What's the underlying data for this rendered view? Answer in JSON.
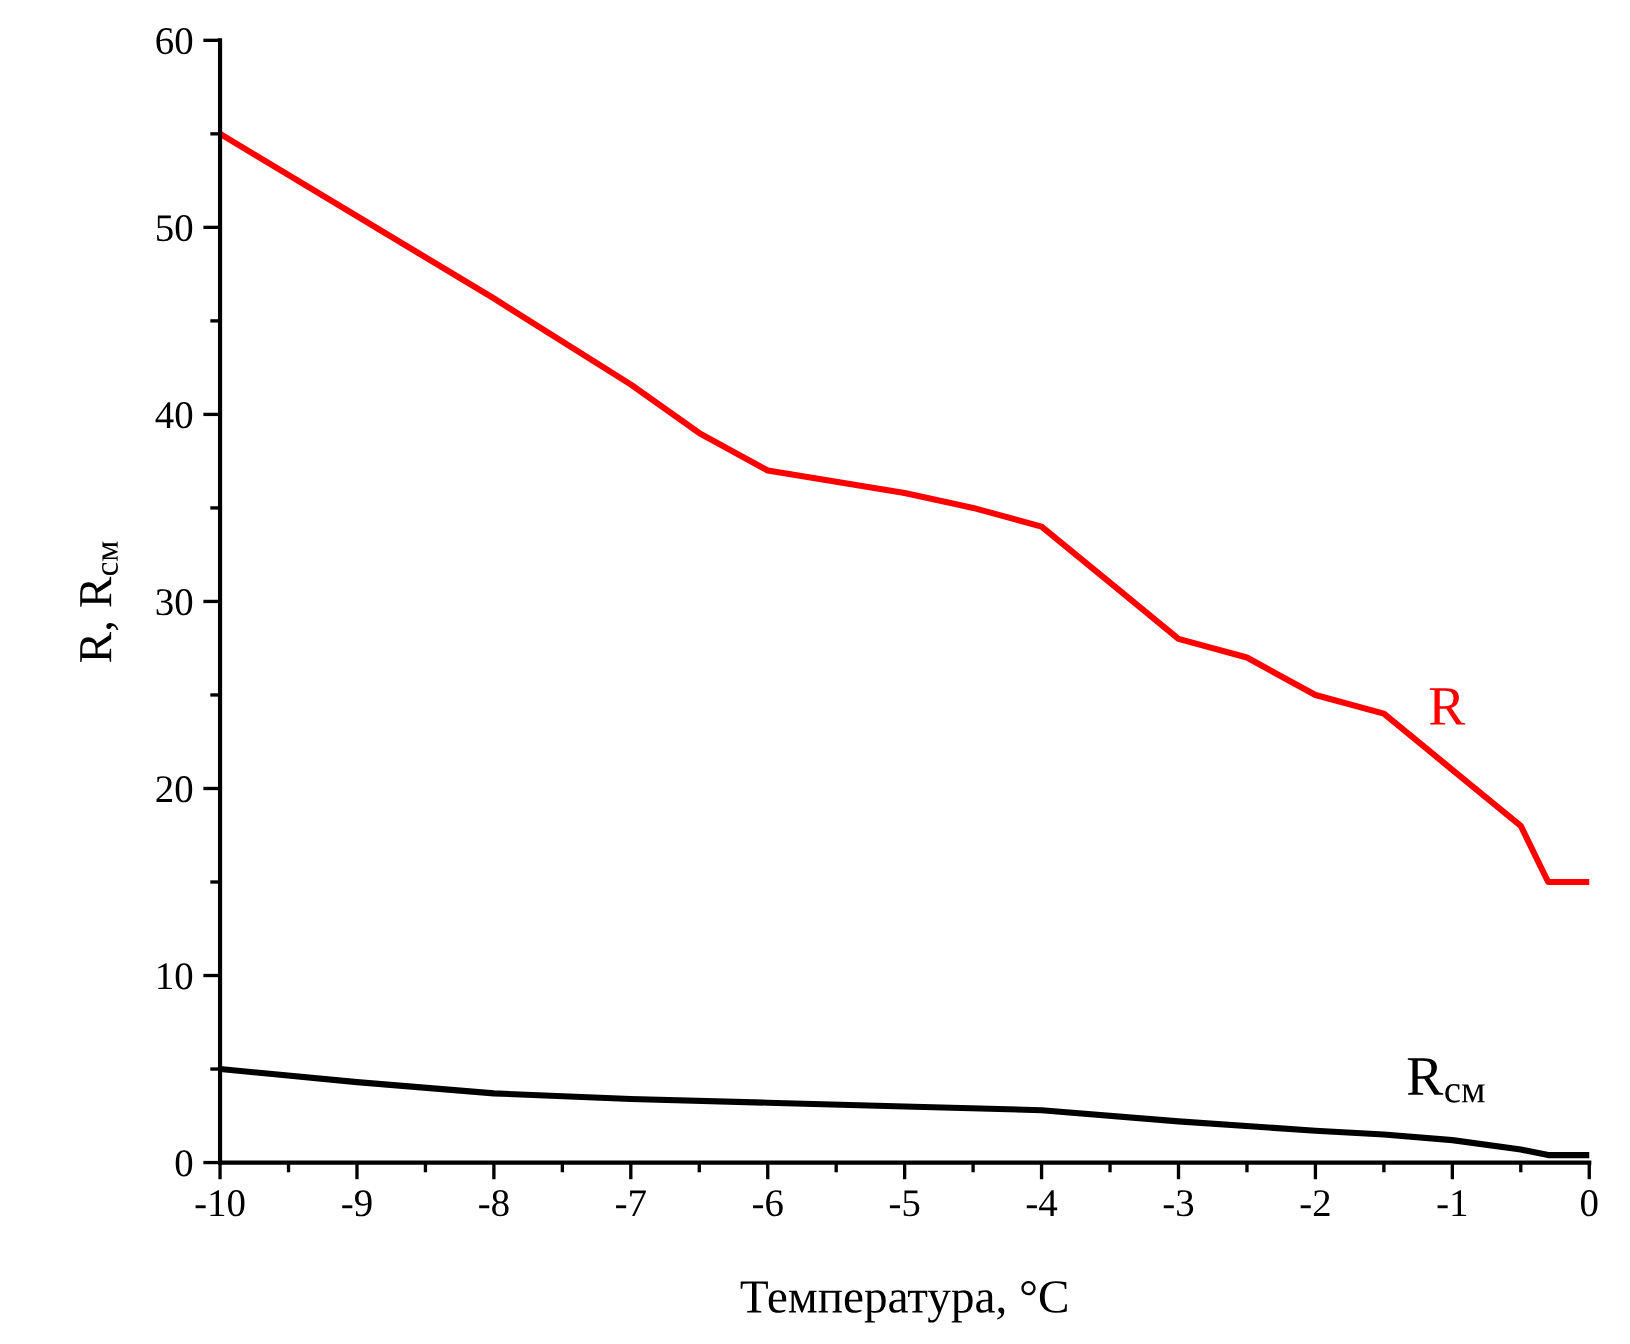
{
  "chart_data": {
    "type": "line",
    "xlabel": "Температура, °C",
    "ylabel": "R, R$_{см}$",
    "xlim": [
      -10,
      0
    ],
    "xticks": [
      -10,
      -9,
      -8,
      -7,
      -6,
      -5,
      -4,
      -3,
      -2,
      -1,
      0
    ],
    "ylim": [
      0,
      60
    ],
    "yticks": [
      0,
      10,
      20,
      30,
      40,
      50,
      60
    ],
    "grid": false,
    "marker": "none",
    "line_style": "solid",
    "series": [
      {
        "name": "R",
        "color": "#ff0000",
        "x": [
          -10,
          -9,
          -8,
          -7,
          -6.5,
          -6,
          -5,
          -4.5,
          -4,
          -3.5,
          -3,
          -2.5,
          -2,
          -1.5,
          -1,
          -0.5,
          -0.3,
          0
        ],
        "values": [
          55,
          50.6,
          46.2,
          41.6,
          39,
          37,
          35.8,
          35,
          34,
          31,
          28,
          27,
          25,
          24,
          21,
          18,
          15,
          15
        ]
      },
      {
        "name": "R$_{см}$",
        "color": "#000000",
        "x": [
          -10,
          -9,
          -8,
          -7,
          -6,
          -5,
          -4,
          -3,
          -2,
          -1.5,
          -1,
          -0.5,
          -0.3,
          0
        ],
        "values": [
          5,
          4.3,
          3.7,
          3.4,
          3.2,
          3.0,
          2.8,
          2.2,
          1.7,
          1.5,
          1.2,
          0.7,
          0.4,
          0.4
        ]
      }
    ]
  }
}
